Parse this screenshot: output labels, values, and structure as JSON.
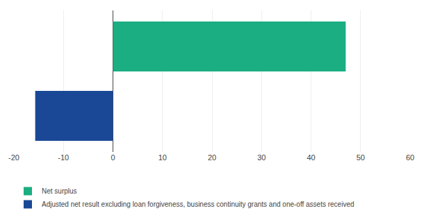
{
  "chart_data": {
    "type": "bar",
    "orientation": "horizontal",
    "categories": [
      null,
      null
    ],
    "series": [
      {
        "name": "Net surplus",
        "color": "#1AAE82",
        "values": [
          47,
          null
        ]
      },
      {
        "name": "Adjusted net result excluding loan forgiveness, business continuity grants and one-off assets received",
        "color": "#1A4896",
        "values": [
          null,
          -15.7
        ]
      }
    ],
    "xlim": [
      -20,
      60
    ],
    "xticks": [
      -20,
      -10,
      0,
      10,
      20,
      30,
      40,
      50,
      60
    ],
    "grid": true,
    "legend": "bottom",
    "tick_labels": "x"
  }
}
